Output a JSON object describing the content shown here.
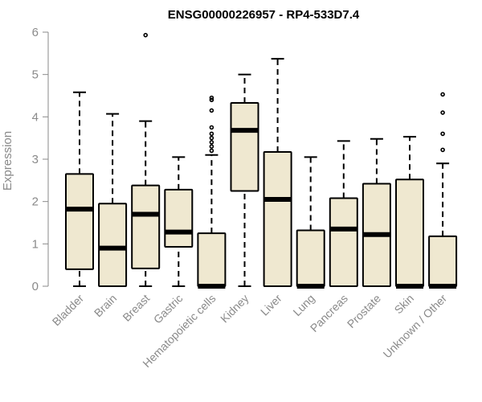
{
  "chart_data": {
    "type": "box",
    "title": "ENSG00000226957 - RP4-533D7.4",
    "xlabel": "",
    "ylabel": "Expression",
    "ylim": [
      0,
      6
    ],
    "yticks": [
      0,
      1,
      2,
      3,
      4,
      5,
      6
    ],
    "grid": false,
    "colors": {
      "box_fill": "#efe8d0",
      "box_stroke": "#000000",
      "axis": "#8a8a8a"
    },
    "categories": [
      "Bladder",
      "Brain",
      "Breast",
      "Gastric",
      "Hematopoietic cells",
      "Kidney",
      "Liver",
      "Lung",
      "Pancreas",
      "Prostate",
      "Skin",
      "Unknown / Other"
    ],
    "boxes": [
      {
        "category": "Bladder",
        "min": 0,
        "q1": 0.4,
        "median": 1.82,
        "q3": 2.65,
        "max": 4.58,
        "outliers": []
      },
      {
        "category": "Brain",
        "min": 0,
        "q1": 0,
        "median": 0.9,
        "q3": 1.95,
        "max": 4.07,
        "outliers": []
      },
      {
        "category": "Breast",
        "min": 0,
        "q1": 0.42,
        "median": 1.7,
        "q3": 2.38,
        "max": 3.9,
        "outliers": [
          5.93
        ]
      },
      {
        "category": "Gastric",
        "min": 0,
        "q1": 0.93,
        "median": 1.28,
        "q3": 2.28,
        "max": 3.05,
        "outliers": []
      },
      {
        "category": "Hematopoietic cells",
        "min": 0,
        "q1": 0,
        "median": 0,
        "q3": 1.25,
        "max": 3.1,
        "outliers": [
          3.2,
          3.3,
          3.4,
          3.5,
          3.6,
          3.75,
          4.15,
          4.4,
          4.45
        ]
      },
      {
        "category": "Kidney",
        "min": 0,
        "q1": 2.25,
        "median": 3.68,
        "q3": 4.33,
        "max": 5.0,
        "outliers": []
      },
      {
        "category": "Liver",
        "min": 0,
        "q1": 0,
        "median": 2.05,
        "q3": 3.17,
        "max": 5.37,
        "outliers": []
      },
      {
        "category": "Lung",
        "min": 0,
        "q1": 0,
        "median": 0,
        "q3": 1.32,
        "max": 3.05,
        "outliers": []
      },
      {
        "category": "Pancreas",
        "min": 0,
        "q1": 0,
        "median": 1.35,
        "q3": 2.08,
        "max": 3.43,
        "outliers": []
      },
      {
        "category": "Prostate",
        "min": 0,
        "q1": 0,
        "median": 1.22,
        "q3": 2.42,
        "max": 3.48,
        "outliers": []
      },
      {
        "category": "Skin",
        "min": 0,
        "q1": 0,
        "median": 0,
        "q3": 2.52,
        "max": 3.53,
        "outliers": []
      },
      {
        "category": "Unknown / Other",
        "min": 0,
        "q1": 0,
        "median": 0,
        "q3": 1.18,
        "max": 2.9,
        "outliers": [
          3.22,
          3.6,
          4.1,
          4.53
        ]
      }
    ]
  }
}
